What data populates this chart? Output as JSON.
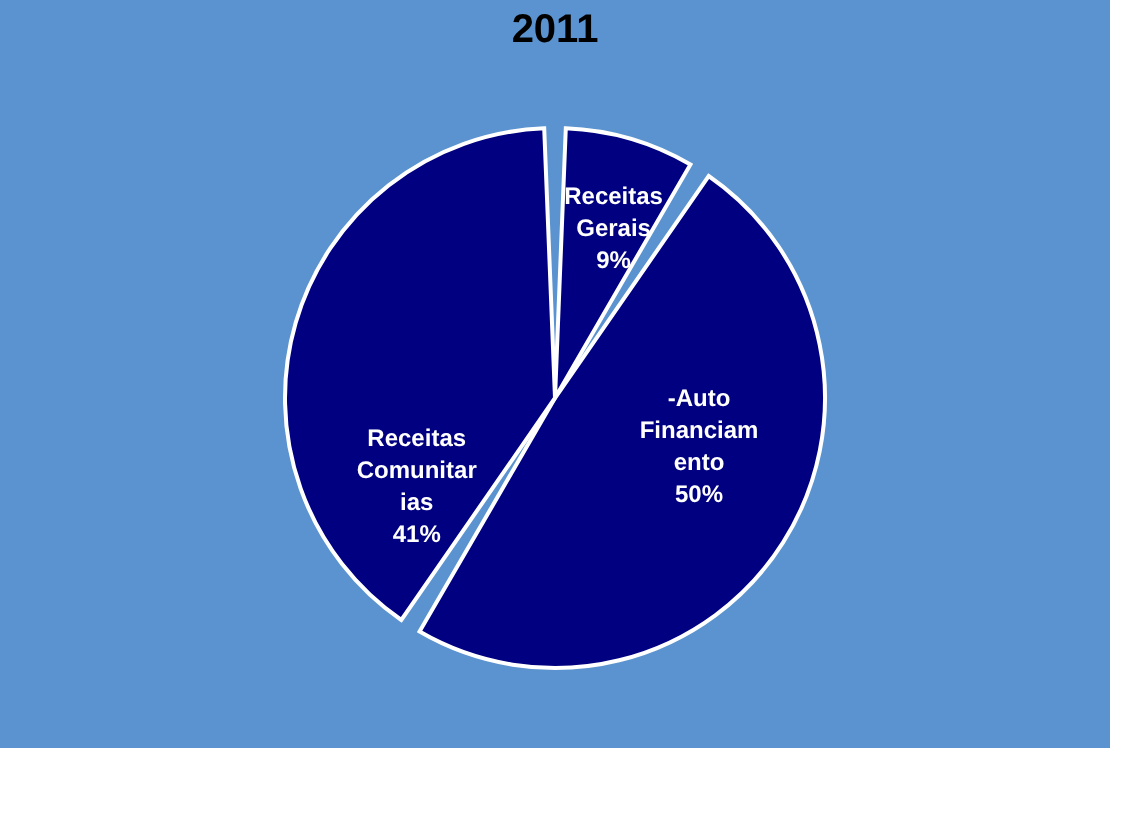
{
  "chart_data": {
    "type": "pie",
    "title": "2011",
    "categories": [
      "Receitas Gerais",
      "-Auto Financiamento",
      "Receitas Comunitarias"
    ],
    "values": [
      9,
      50,
      41
    ],
    "colors": [
      "#000080",
      "#000080",
      "#000080"
    ],
    "value_labels": [
      "9%",
      "50%",
      "41%"
    ],
    "legend": false
  }
}
